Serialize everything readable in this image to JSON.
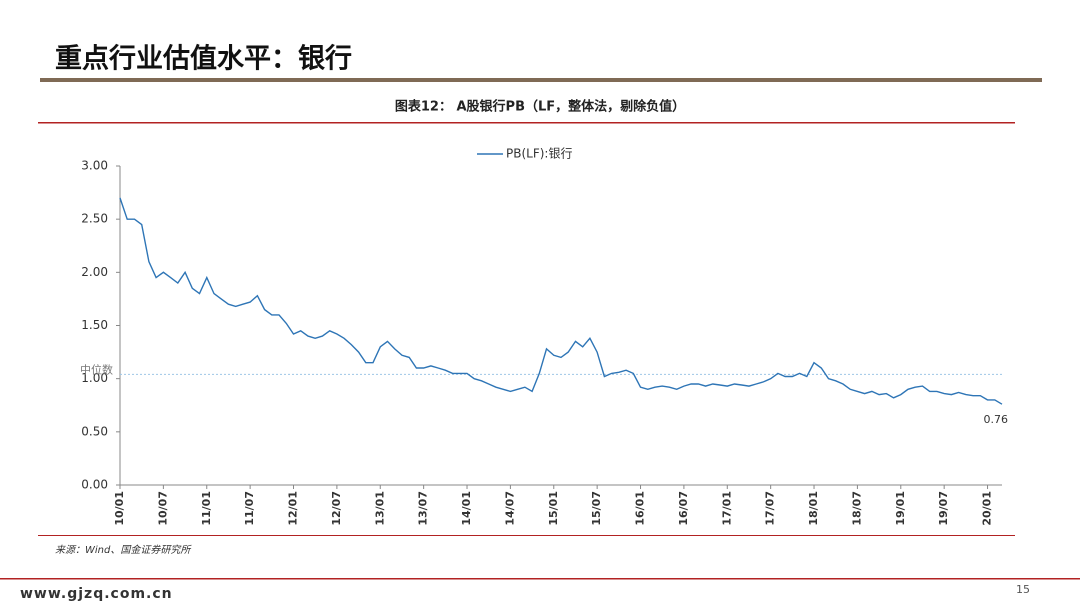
{
  "page": {
    "title": "重点行业估值水平：银行",
    "caption": "图表12： A股银行PB（LF，整体法，剔除负值）",
    "source": "来源：Wind、国金证券研究所",
    "footer": "www.gjzq.com.cn",
    "page_number": "15"
  },
  "chart_data": {
    "type": "line",
    "x": [
      "10/01",
      "10/02",
      "10/03",
      "10/04",
      "10/05",
      "10/06",
      "10/07",
      "10/08",
      "10/09",
      "10/10",
      "10/11",
      "10/12",
      "11/01",
      "11/02",
      "11/03",
      "11/04",
      "11/05",
      "11/06",
      "11/07",
      "11/08",
      "11/09",
      "11/10",
      "11/11",
      "11/12",
      "12/01",
      "12/02",
      "12/03",
      "12/04",
      "12/05",
      "12/06",
      "12/07",
      "12/08",
      "12/09",
      "12/10",
      "12/11",
      "12/12",
      "13/01",
      "13/02",
      "13/03",
      "13/04",
      "13/05",
      "13/06",
      "13/07",
      "13/08",
      "13/09",
      "13/10",
      "13/11",
      "13/12",
      "14/01",
      "14/02",
      "14/03",
      "14/04",
      "14/05",
      "14/06",
      "14/07",
      "14/08",
      "14/09",
      "14/10",
      "14/11",
      "14/12",
      "15/01",
      "15/02",
      "15/03",
      "15/04",
      "15/05",
      "15/06",
      "15/07",
      "15/08",
      "15/09",
      "15/10",
      "15/11",
      "15/12",
      "16/01",
      "16/02",
      "16/03",
      "16/04",
      "16/05",
      "16/06",
      "16/07",
      "16/08",
      "16/09",
      "16/10",
      "16/11",
      "16/12",
      "17/01",
      "17/02",
      "17/03",
      "17/04",
      "17/05",
      "17/06",
      "17/07",
      "17/08",
      "17/09",
      "17/10",
      "17/11",
      "17/12",
      "18/01",
      "18/02",
      "18/03",
      "18/04",
      "18/05",
      "18/06",
      "18/07",
      "18/08",
      "18/09",
      "18/10",
      "18/11",
      "18/12",
      "19/01",
      "19/02",
      "19/03",
      "19/04",
      "19/05",
      "19/06",
      "19/07",
      "19/08",
      "19/09",
      "19/10",
      "19/11",
      "19/12",
      "20/01",
      "20/02",
      "20/03"
    ],
    "series": [
      {
        "name": "PB(LF):银行",
        "color": "#2e75b6",
        "values": [
          2.7,
          2.5,
          2.5,
          2.45,
          2.1,
          1.95,
          2.0,
          1.95,
          1.9,
          2.0,
          1.85,
          1.8,
          1.95,
          1.8,
          1.75,
          1.7,
          1.68,
          1.7,
          1.72,
          1.78,
          1.65,
          1.6,
          1.6,
          1.52,
          1.42,
          1.45,
          1.4,
          1.38,
          1.4,
          1.45,
          1.42,
          1.38,
          1.32,
          1.25,
          1.15,
          1.15,
          1.3,
          1.35,
          1.28,
          1.22,
          1.2,
          1.1,
          1.1,
          1.12,
          1.1,
          1.08,
          1.05,
          1.05,
          1.05,
          1.0,
          0.98,
          0.95,
          0.92,
          0.9,
          0.88,
          0.9,
          0.92,
          0.88,
          1.05,
          1.28,
          1.22,
          1.2,
          1.25,
          1.35,
          1.3,
          1.38,
          1.25,
          1.02,
          1.05,
          1.06,
          1.08,
          1.05,
          0.92,
          0.9,
          0.92,
          0.93,
          0.92,
          0.9,
          0.93,
          0.95,
          0.95,
          0.93,
          0.95,
          0.94,
          0.93,
          0.95,
          0.94,
          0.93,
          0.95,
          0.97,
          1.0,
          1.05,
          1.02,
          1.02,
          1.05,
          1.02,
          1.15,
          1.1,
          1.0,
          0.98,
          0.95,
          0.9,
          0.88,
          0.86,
          0.88,
          0.85,
          0.86,
          0.82,
          0.85,
          0.9,
          0.92,
          0.93,
          0.88,
          0.88,
          0.86,
          0.85,
          0.87,
          0.85,
          0.84,
          0.84,
          0.8,
          0.8,
          0.76
        ]
      }
    ],
    "xticks": [
      "10/01",
      "10/07",
      "11/01",
      "11/07",
      "12/01",
      "12/07",
      "13/01",
      "13/07",
      "14/01",
      "14/07",
      "15/01",
      "15/07",
      "16/01",
      "16/07",
      "17/01",
      "17/07",
      "18/01",
      "18/07",
      "19/01",
      "19/07",
      "20/01"
    ],
    "ylim": [
      0,
      3
    ],
    "yticks": [
      {
        "value": 0,
        "label": "0.00"
      },
      {
        "value": 0.5,
        "label": "0.50"
      },
      {
        "value": 1,
        "label": "1.00"
      },
      {
        "value": 1.5,
        "label": "1.50"
      },
      {
        "value": 2,
        "label": "2.00"
      },
      {
        "value": 2.5,
        "label": "2.50"
      },
      {
        "value": 3,
        "label": "3.00"
      }
    ],
    "median": {
      "label": "中位数",
      "value": 1.04
    },
    "legend": "top"
  }
}
